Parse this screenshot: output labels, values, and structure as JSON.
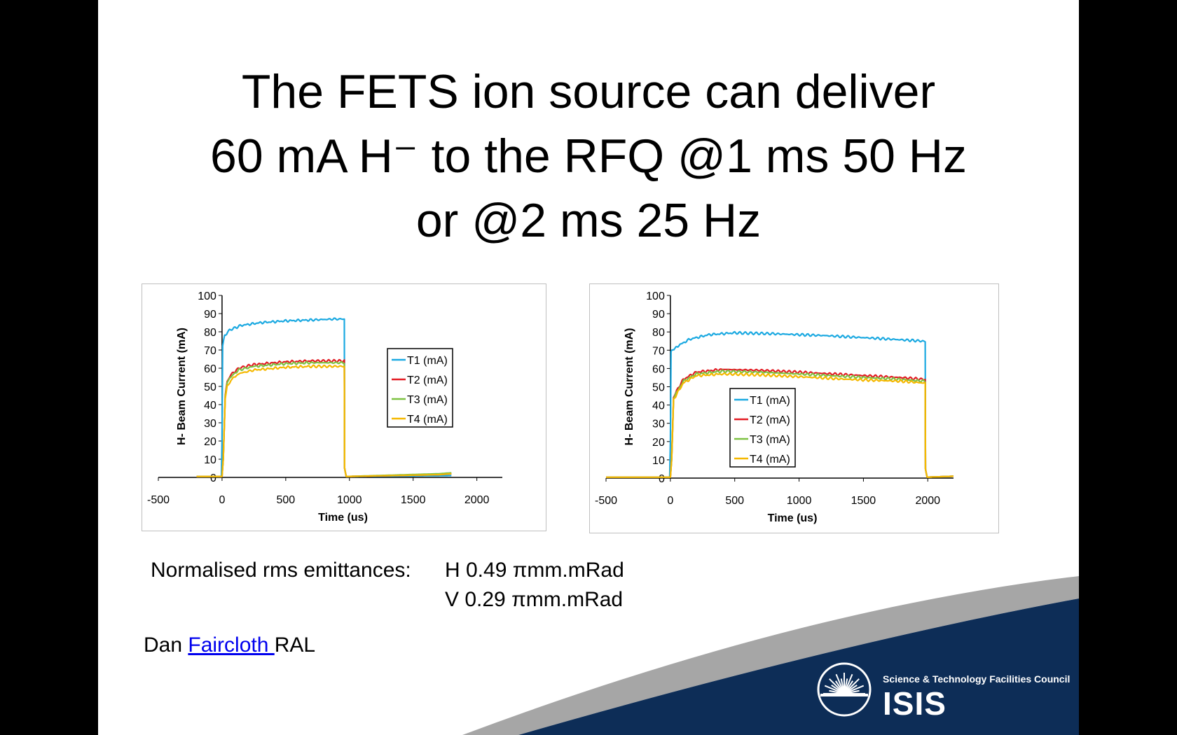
{
  "slide": {
    "title_lines": [
      "The FETS ion source can deliver",
      "60 mA H⁻ to the RFQ @1 ms 50 Hz",
      "or @2 ms 25 Hz"
    ],
    "emittance": {
      "label": "Normalised rms emittances:",
      "h": "H 0.49 πmm.mRad",
      "v": "V 0.29 πmm.mRad"
    },
    "author": {
      "first": "Dan ",
      "link": "Faircloth ",
      "org": "RAL"
    },
    "logo": {
      "council": "Science & Technology Facilities Council",
      "name": "ISIS",
      "icon": "sunburst-icon"
    },
    "colors": {
      "navy": "#0d2d57",
      "grey": "#a6a6a6"
    }
  },
  "chart_data": [
    {
      "type": "line",
      "xlabel": "Time (us)",
      "ylabel": "H- Beam Current (mA)",
      "xlim": [
        -500,
        2200
      ],
      "ylim": [
        0,
        100
      ],
      "xticks": [
        -500,
        0,
        500,
        1000,
        1500,
        2000
      ],
      "yticks": [
        0,
        10,
        20,
        30,
        40,
        50,
        60,
        70,
        80,
        90,
        100
      ],
      "legend_position": "middle-right",
      "series": [
        {
          "name": "T1 (mA)",
          "color": "#1ba9e1",
          "points": [
            [
              -200,
              0.5
            ],
            [
              -5,
              0.5
            ],
            [
              0,
              20
            ],
            [
              5,
              72
            ],
            [
              20,
              78
            ],
            [
              60,
              81
            ],
            [
              150,
              83.5
            ],
            [
              300,
              85
            ],
            [
              500,
              86
            ],
            [
              700,
              86.5
            ],
            [
              880,
              87
            ],
            [
              960,
              87
            ],
            [
              962,
              5
            ],
            [
              975,
              0.5
            ],
            [
              1800,
              1
            ]
          ]
        },
        {
          "name": "T2 (mA)",
          "color": "#e31b23",
          "points": [
            [
              -200,
              0.5
            ],
            [
              0,
              0.5
            ],
            [
              10,
              10
            ],
            [
              25,
              45
            ],
            [
              40,
              52
            ],
            [
              60,
              55
            ],
            [
              80,
              57
            ],
            [
              130,
              60
            ],
            [
              250,
              62
            ],
            [
              500,
              63.5
            ],
            [
              700,
              64
            ],
            [
              960,
              64
            ],
            [
              962,
              5
            ],
            [
              975,
              0.5
            ],
            [
              1700,
              1.5
            ],
            [
              1800,
              2
            ]
          ]
        },
        {
          "name": "T3 (mA)",
          "color": "#7dc142",
          "points": [
            [
              -200,
              0.5
            ],
            [
              0,
              0.5
            ],
            [
              10,
              10
            ],
            [
              25,
              45
            ],
            [
              40,
              52
            ],
            [
              60,
              54
            ],
            [
              80,
              56
            ],
            [
              130,
              59
            ],
            [
              250,
              61
            ],
            [
              500,
              62.5
            ],
            [
              700,
              63
            ],
            [
              960,
              63
            ],
            [
              962,
              5
            ],
            [
              975,
              0.5
            ],
            [
              1700,
              2
            ],
            [
              1800,
              2.5
            ]
          ]
        },
        {
          "name": "T4 (mA)",
          "color": "#f5b800",
          "points": [
            [
              -200,
              0.5
            ],
            [
              0,
              0.5
            ],
            [
              10,
              10
            ],
            [
              25,
              43
            ],
            [
              40,
              50
            ],
            [
              60,
              52
            ],
            [
              80,
              54
            ],
            [
              130,
              57
            ],
            [
              250,
              59
            ],
            [
              500,
              60.5
            ],
            [
              700,
              61
            ],
            [
              960,
              61
            ],
            [
              962,
              5
            ],
            [
              975,
              0.5
            ],
            [
              1700,
              1.5
            ],
            [
              1800,
              2
            ]
          ]
        }
      ]
    },
    {
      "type": "line",
      "xlabel": "Time (us)",
      "ylabel": "H- Beam Current (mA)",
      "xlim": [
        -500,
        2200
      ],
      "ylim": [
        0,
        100
      ],
      "xticks": [
        -500,
        0,
        500,
        1000,
        1500,
        2000
      ],
      "yticks": [
        0,
        10,
        20,
        30,
        40,
        50,
        60,
        70,
        80,
        90,
        100
      ],
      "legend_position": "bottom-left",
      "series": [
        {
          "name": "T1 (mA)",
          "color": "#1ba9e1",
          "points": [
            [
              -500,
              0.5
            ],
            [
              -5,
              0.5
            ],
            [
              0,
              20
            ],
            [
              5,
              69
            ],
            [
              50,
              72
            ],
            [
              150,
              76
            ],
            [
              300,
              78.5
            ],
            [
              500,
              79.5
            ],
            [
              800,
              79
            ],
            [
              1200,
              78
            ],
            [
              1600,
              76.5
            ],
            [
              1960,
              75
            ],
            [
              1980,
              75
            ],
            [
              1982,
              5
            ],
            [
              1995,
              0.5
            ],
            [
              2200,
              1
            ]
          ]
        },
        {
          "name": "T2 (mA)",
          "color": "#e31b23",
          "points": [
            [
              -500,
              0.5
            ],
            [
              0,
              0.5
            ],
            [
              10,
              10
            ],
            [
              25,
              44
            ],
            [
              50,
              48
            ],
            [
              100,
              54
            ],
            [
              200,
              58
            ],
            [
              400,
              59.5
            ],
            [
              700,
              59
            ],
            [
              1000,
              58
            ],
            [
              1400,
              56.5
            ],
            [
              1800,
              55
            ],
            [
              1980,
              54
            ],
            [
              1982,
              5
            ],
            [
              1995,
              0.5
            ],
            [
              2200,
              1
            ]
          ]
        },
        {
          "name": "T3 (mA)",
          "color": "#7dc142",
          "points": [
            [
              -500,
              0.5
            ],
            [
              0,
              0.5
            ],
            [
              10,
              10
            ],
            [
              25,
              44
            ],
            [
              50,
              47
            ],
            [
              100,
              53
            ],
            [
              200,
              57
            ],
            [
              400,
              58.5
            ],
            [
              700,
              58
            ],
            [
              1000,
              57
            ],
            [
              1400,
              55.5
            ],
            [
              1800,
              54
            ],
            [
              1980,
              53
            ],
            [
              1982,
              5
            ],
            [
              1995,
              0.5
            ],
            [
              2200,
              1
            ]
          ]
        },
        {
          "name": "T4 (mA)",
          "color": "#f5b800",
          "points": [
            [
              -500,
              0.5
            ],
            [
              0,
              0.5
            ],
            [
              10,
              10
            ],
            [
              25,
              43
            ],
            [
              50,
              46
            ],
            [
              100,
              52
            ],
            [
              200,
              56
            ],
            [
              400,
              57
            ],
            [
              700,
              56.5
            ],
            [
              1000,
              55.5
            ],
            [
              1400,
              54
            ],
            [
              1800,
              53
            ],
            [
              1980,
              52
            ],
            [
              1982,
              5
            ],
            [
              1995,
              0.5
            ],
            [
              2200,
              1
            ]
          ]
        }
      ]
    }
  ]
}
